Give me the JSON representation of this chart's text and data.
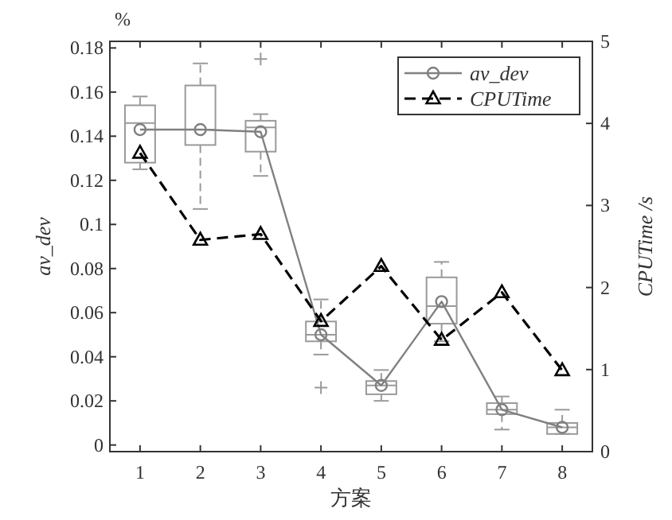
{
  "chart_data": {
    "type": "box",
    "xlabel": "方案",
    "ylabel": "av_dev",
    "y2label": "CPUTime /s",
    "annotations": [
      "%"
    ],
    "categories": [
      "1",
      "2",
      "3",
      "4",
      "5",
      "6",
      "7",
      "8"
    ],
    "color": "#9a9a9a",
    "boxes": [
      {
        "low": 0.125,
        "q1": 0.128,
        "median": 0.146,
        "q3": 0.154,
        "high": 0.158
      },
      {
        "low": 0.107,
        "q1": 0.136,
        "median": 0.143,
        "q3": 0.163,
        "high": 0.173
      },
      {
        "low": 0.122,
        "q1": 0.133,
        "median": 0.144,
        "q3": 0.147,
        "high": 0.15,
        "outliers": [
          0.175
        ]
      },
      {
        "low": 0.041,
        "q1": 0.047,
        "median": 0.05,
        "q3": 0.056,
        "high": 0.066,
        "outliers": [
          0.026
        ]
      },
      {
        "low": 0.02,
        "q1": 0.023,
        "median": 0.027,
        "q3": 0.029,
        "high": 0.034
      },
      {
        "low": 0.047,
        "q1": 0.055,
        "median": 0.063,
        "q3": 0.076,
        "high": 0.083
      },
      {
        "low": 0.007,
        "q1": 0.014,
        "median": 0.016,
        "q3": 0.019,
        "high": 0.022
      },
      {
        "low": 0.005,
        "q1": 0.005,
        "median": 0.008,
        "q3": 0.01,
        "high": 0.016
      }
    ],
    "series": [
      {
        "name": "av_dev",
        "type": "line",
        "color": "#808080",
        "marker": "circle",
        "line_style": "solid",
        "values": [
          0.143,
          0.143,
          0.142,
          0.05,
          0.027,
          0.065,
          0.016,
          0.008
        ]
      },
      {
        "name": "CPUTime",
        "type": "line",
        "axis": "y2",
        "color": "#000000",
        "marker": "triangle",
        "line_style": "dashed",
        "values": [
          3.64,
          2.58,
          2.65,
          1.59,
          2.26,
          1.36,
          1.94,
          0.99
        ]
      }
    ],
    "ylim": [
      -0.003,
      0.183
    ],
    "yticks": [
      0,
      0.02,
      0.04,
      0.06,
      0.08,
      0.1,
      0.12,
      0.14,
      0.16,
      0.18
    ],
    "y2lim": [
      0,
      5
    ],
    "y2ticks": [
      0,
      1,
      2,
      3,
      4,
      5
    ],
    "legend": "top right",
    "grid": false
  }
}
